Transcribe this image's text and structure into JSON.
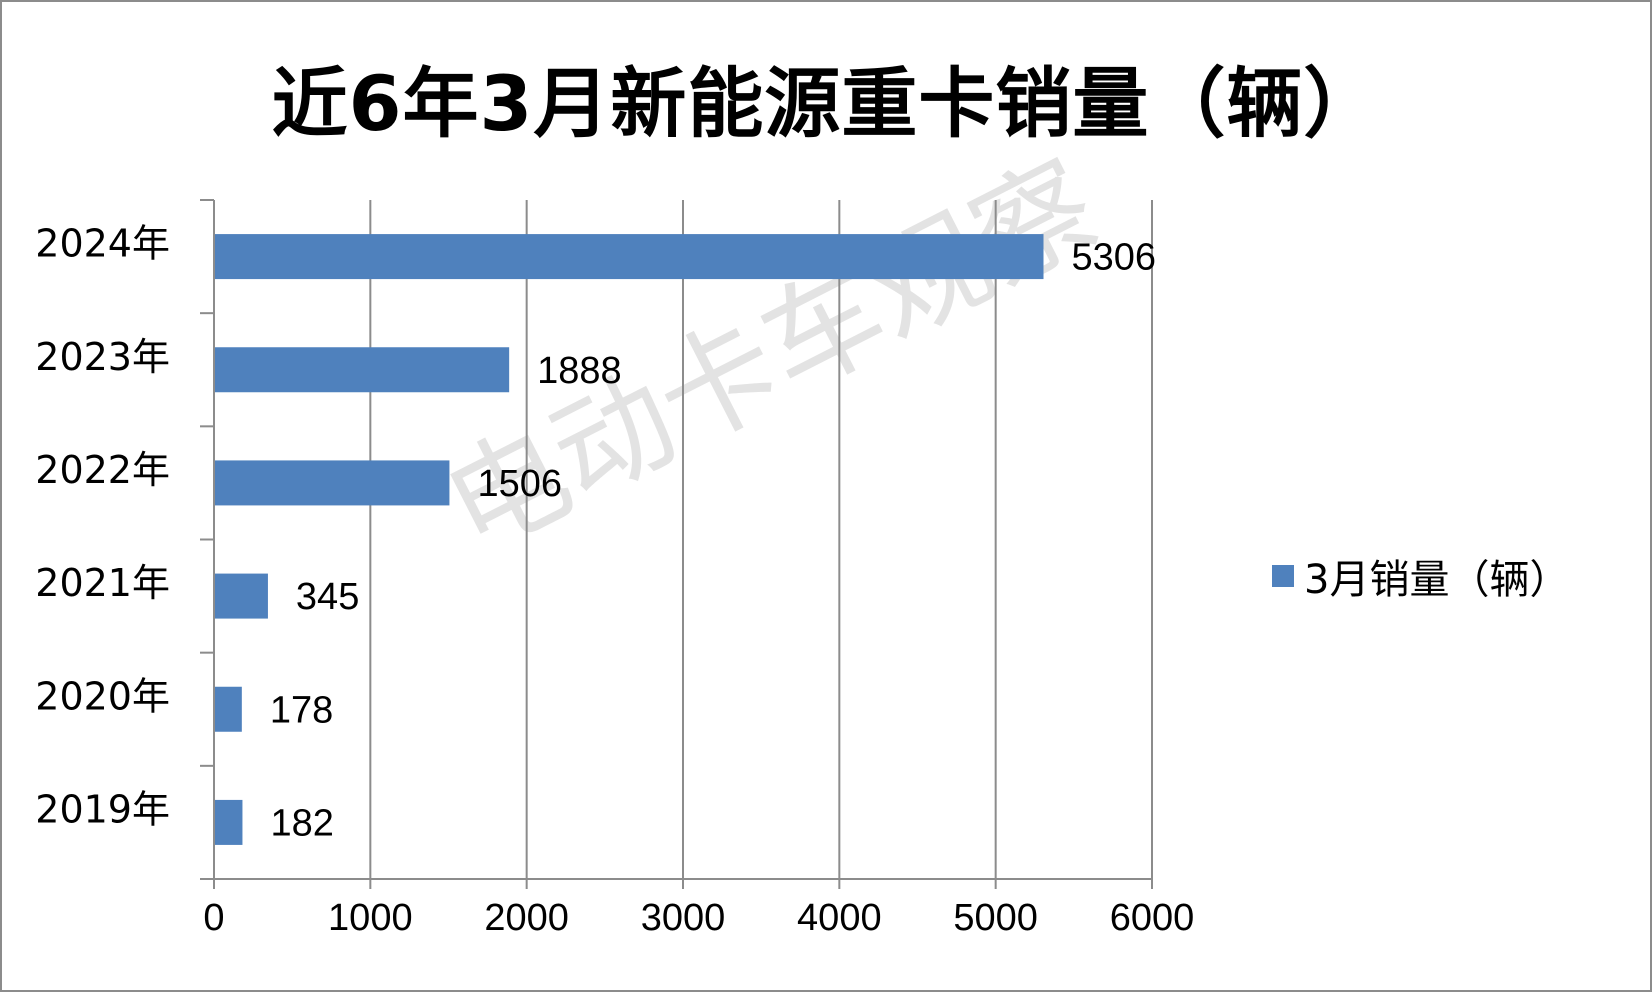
{
  "chart_data": {
    "type": "bar",
    "orientation": "horizontal",
    "title": "近6年3月新能源重卡销量（辆）",
    "categories": [
      "2024年",
      "2023年",
      "2022年",
      "2021年",
      "2020年",
      "2019年"
    ],
    "series": [
      {
        "name": "3月销量（辆）",
        "values": [
          5306,
          1888,
          1506,
          345,
          178,
          182
        ]
      }
    ],
    "xlim": [
      0,
      6000
    ],
    "xticks": [
      "0",
      "1000",
      "2000",
      "3000",
      "4000",
      "5000",
      "6000"
    ],
    "data_labels": true,
    "grid": "vertical",
    "legend_position": "right",
    "bar_color": "#4f81bd",
    "watermark": "电动卡车观察"
  }
}
